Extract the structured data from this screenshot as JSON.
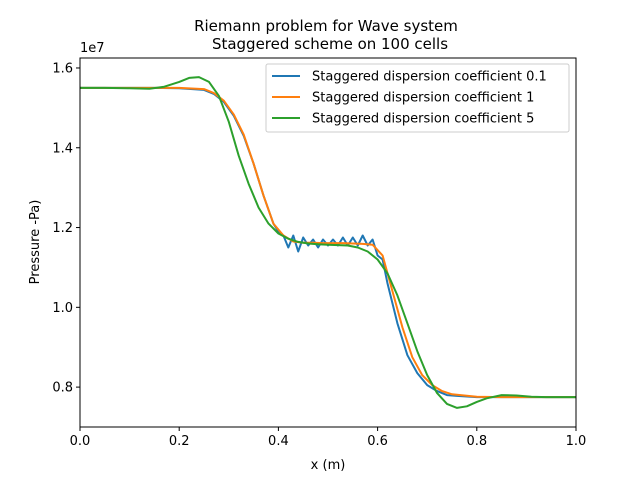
{
  "chart_data": {
    "type": "line",
    "title": "Riemann problem for Wave system",
    "subtitle": "Staggered scheme on 100 cells",
    "xlabel": "x (m)",
    "ylabel": "Pressure -Pa)",
    "y_multiplier_label": "1e7",
    "xlim": [
      0.0,
      1.0
    ],
    "ylim": [
      0.7,
      1.625
    ],
    "x_ticks": [
      0.0,
      0.2,
      0.4,
      0.6,
      0.8,
      1.0
    ],
    "x_tick_labels": [
      "0.0",
      "0.2",
      "0.4",
      "0.6",
      "0.8",
      "1.0"
    ],
    "y_ticks": [
      0.8,
      1.0,
      1.2,
      1.4,
      1.6
    ],
    "y_tick_labels": [
      "0.8",
      "1.0",
      "1.2",
      "1.4",
      "1.6"
    ],
    "grid": false,
    "legend_position": "top-right",
    "series": [
      {
        "name": "Staggered dispersion coefficient 0.1",
        "color": "#1f77b4",
        "x": [
          0.0,
          0.05,
          0.1,
          0.15,
          0.2,
          0.25,
          0.27,
          0.29,
          0.31,
          0.33,
          0.35,
          0.37,
          0.39,
          0.4,
          0.41,
          0.42,
          0.43,
          0.44,
          0.45,
          0.46,
          0.47,
          0.48,
          0.49,
          0.5,
          0.51,
          0.52,
          0.53,
          0.54,
          0.55,
          0.56,
          0.57,
          0.58,
          0.59,
          0.6,
          0.61,
          0.62,
          0.64,
          0.66,
          0.68,
          0.7,
          0.72,
          0.74,
          0.76,
          0.8,
          0.85,
          0.9,
          1.0
        ],
        "y": [
          1.55,
          1.55,
          1.55,
          1.55,
          1.549,
          1.545,
          1.535,
          1.515,
          1.48,
          1.43,
          1.36,
          1.28,
          1.21,
          1.19,
          1.18,
          1.15,
          1.18,
          1.14,
          1.175,
          1.155,
          1.17,
          1.15,
          1.17,
          1.155,
          1.17,
          1.155,
          1.175,
          1.155,
          1.175,
          1.155,
          1.18,
          1.155,
          1.17,
          1.13,
          1.12,
          1.06,
          0.96,
          0.88,
          0.835,
          0.805,
          0.79,
          0.78,
          0.778,
          0.775,
          0.775,
          0.775,
          0.775
        ]
      },
      {
        "name": "Staggered dispersion coefficient 1",
        "color": "#ff7f0e",
        "x": [
          0.0,
          0.05,
          0.1,
          0.15,
          0.2,
          0.25,
          0.27,
          0.29,
          0.31,
          0.33,
          0.35,
          0.37,
          0.39,
          0.41,
          0.43,
          0.45,
          0.47,
          0.49,
          0.51,
          0.53,
          0.55,
          0.57,
          0.59,
          0.61,
          0.63,
          0.65,
          0.67,
          0.69,
          0.71,
          0.73,
          0.75,
          0.8,
          0.85,
          0.9,
          1.0
        ],
        "y": [
          1.55,
          1.55,
          1.55,
          1.55,
          1.55,
          1.547,
          1.537,
          1.518,
          1.483,
          1.433,
          1.36,
          1.28,
          1.21,
          1.18,
          1.165,
          1.162,
          1.162,
          1.161,
          1.161,
          1.161,
          1.16,
          1.159,
          1.157,
          1.13,
          1.04,
          0.95,
          0.875,
          0.83,
          0.805,
          0.79,
          0.782,
          0.776,
          0.775,
          0.775,
          0.775
        ]
      },
      {
        "name": "Staggered dispersion coefficient 5",
        "color": "#2ca02c",
        "x": [
          0.0,
          0.05,
          0.1,
          0.14,
          0.17,
          0.2,
          0.22,
          0.24,
          0.26,
          0.28,
          0.3,
          0.32,
          0.34,
          0.36,
          0.38,
          0.4,
          0.42,
          0.44,
          0.46,
          0.48,
          0.5,
          0.52,
          0.54,
          0.56,
          0.58,
          0.6,
          0.62,
          0.64,
          0.66,
          0.68,
          0.7,
          0.72,
          0.74,
          0.76,
          0.78,
          0.8,
          0.82,
          0.85,
          0.88,
          0.91,
          0.94,
          1.0
        ],
        "y": [
          1.55,
          1.55,
          1.549,
          1.548,
          1.553,
          1.565,
          1.575,
          1.577,
          1.565,
          1.53,
          1.465,
          1.38,
          1.31,
          1.25,
          1.21,
          1.185,
          1.172,
          1.164,
          1.16,
          1.158,
          1.157,
          1.156,
          1.155,
          1.15,
          1.14,
          1.12,
          1.085,
          1.03,
          0.96,
          0.89,
          0.83,
          0.785,
          0.758,
          0.748,
          0.752,
          0.763,
          0.772,
          0.78,
          0.779,
          0.776,
          0.775,
          0.775
        ]
      }
    ]
  }
}
